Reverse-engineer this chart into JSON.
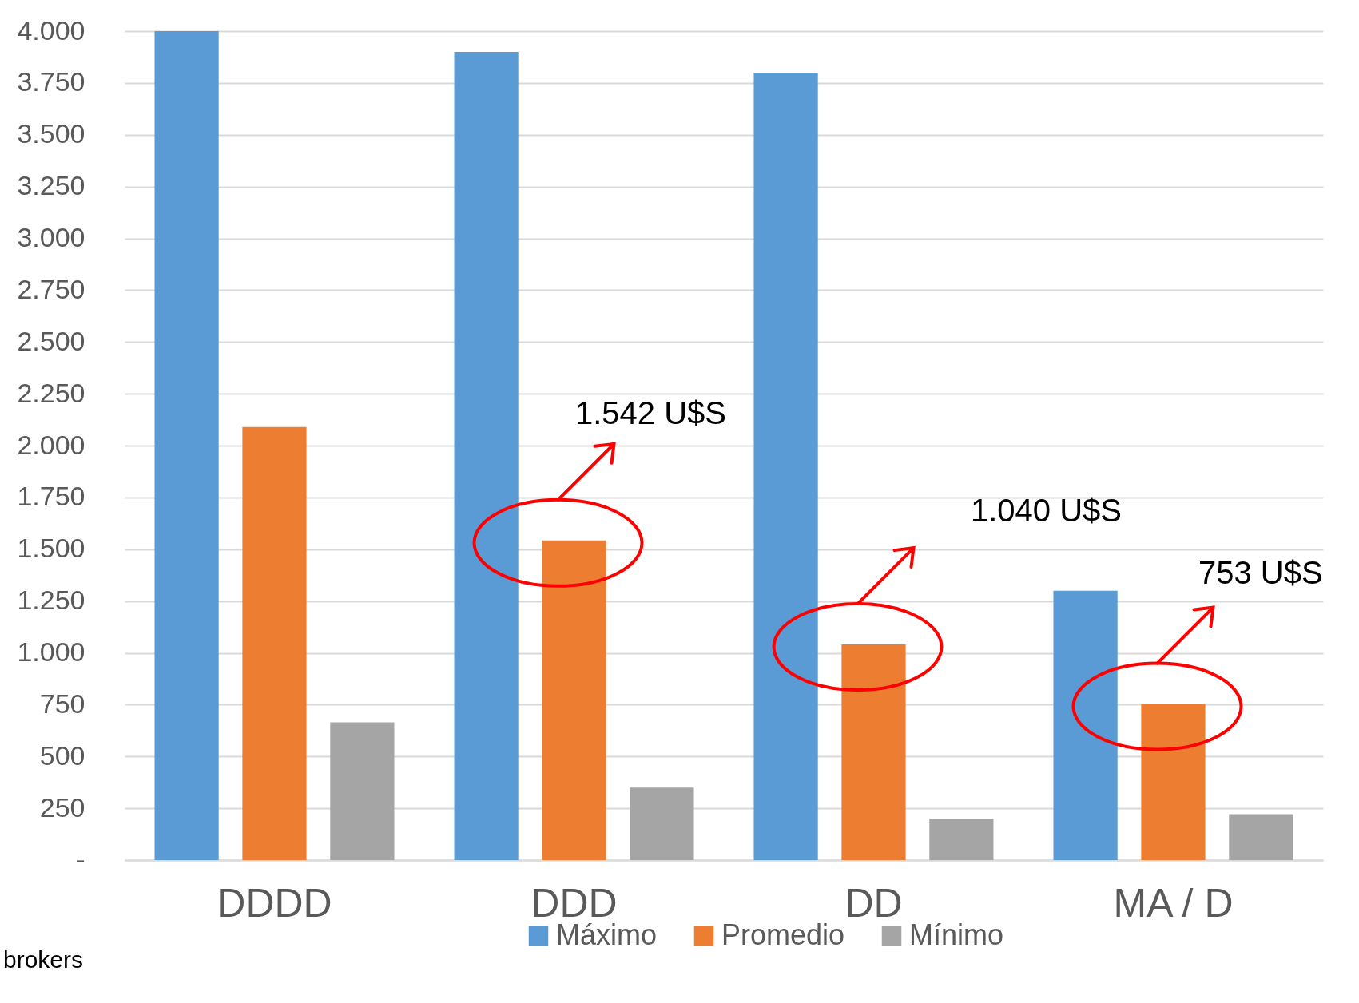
{
  "chart_data": {
    "type": "bar",
    "categories": [
      "DDDD",
      "DDD",
      "DD",
      "MA / D"
    ],
    "series": [
      {
        "name": "Máximo",
        "color": "#5b9bd5",
        "values": [
          4000,
          3900,
          3800,
          1300
        ]
      },
      {
        "name": "Promedio",
        "color": "#ed7d31",
        "values": [
          2090,
          1542,
          1040,
          753
        ]
      },
      {
        "name": "Mínimo",
        "color": "#a5a5a5",
        "values": [
          665,
          350,
          200,
          222
        ]
      }
    ],
    "ylim": [
      0,
      4000
    ],
    "yticks": [
      {
        "value": 0,
        "label": "-"
      },
      {
        "value": 250,
        "label": "250"
      },
      {
        "value": 500,
        "label": "500"
      },
      {
        "value": 750,
        "label": "750"
      },
      {
        "value": 1000,
        "label": "1.000"
      },
      {
        "value": 1250,
        "label": "1.250"
      },
      {
        "value": 1500,
        "label": "1.500"
      },
      {
        "value": 1750,
        "label": "1.750"
      },
      {
        "value": 2000,
        "label": "2.000"
      },
      {
        "value": 2250,
        "label": "2.250"
      },
      {
        "value": 2500,
        "label": "2.500"
      },
      {
        "value": 2750,
        "label": "2.750"
      },
      {
        "value": 3000,
        "label": "3.000"
      },
      {
        "value": 3250,
        "label": "3.250"
      },
      {
        "value": 3500,
        "label": "3.500"
      },
      {
        "value": 3750,
        "label": "3.750"
      },
      {
        "value": 4000,
        "label": "4.000"
      }
    ],
    "grid": "y",
    "legend": "bottom",
    "annotations": [
      "1.542 U$S",
      "1.040 U$S",
      "753 U$S",
      "brokers"
    ]
  }
}
